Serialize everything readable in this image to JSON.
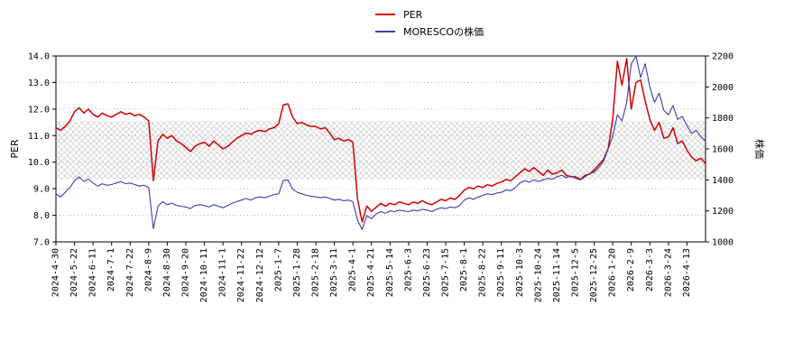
{
  "chart_data": {
    "type": "line",
    "title": "",
    "legend": [
      {
        "label": "PER",
        "color": "#d30000"
      },
      {
        "label": "MORESCOの株価",
        "color": "#3c3cb4"
      }
    ],
    "left_axis": {
      "label": "PER",
      "min": 7.0,
      "max": 14.0,
      "ticks": [
        7.0,
        8.0,
        9.0,
        10.0,
        11.0,
        12.0,
        13.0,
        14.0
      ]
    },
    "right_axis": {
      "label": "株価",
      "min": 1000,
      "max": 2200,
      "ticks": [
        1000,
        1200,
        1400,
        1600,
        1800,
        2000,
        2200
      ]
    },
    "x_ticks": [
      "2024-4-30",
      "2024-5-22",
      "2024-6-11",
      "2024-7-1",
      "2024-7-22",
      "2024-8-9",
      "2024-8-30",
      "2024-9-20",
      "2024-10-11",
      "2024-11-1",
      "2024-11-22",
      "2024-12-12",
      "2025-1-7",
      "2025-1-28",
      "2025-2-18",
      "2025-3-11",
      "2025-4-1",
      "2025-4-21",
      "2025-5-14",
      "2025-6-3",
      "2025-6-23",
      "2025-7-15",
      "2025-8-1",
      "2025-8-22",
      "2025-9-11",
      "2025-10-3",
      "2025-10-24",
      "2025-11-14",
      "2025-12-5",
      "2025-12-25",
      "2026-1-20",
      "2026-2-9",
      "2026-3-3",
      "2026-3-24",
      "2026-4-13"
    ],
    "points_per_tick": 4,
    "band": {
      "axis": "left",
      "from": 9.35,
      "to": 11.55,
      "style": "crosshatch"
    },
    "colors": {
      "grid": "#9a9a9a",
      "hatch": "#c9c9c9",
      "axis": "#000000",
      "background": "#ffffff"
    },
    "series": [
      {
        "name": "PER",
        "axis": "left",
        "color": "#d30000",
        "width": 1.5,
        "values": [
          11.3,
          11.2,
          11.35,
          11.55,
          11.9,
          12.05,
          11.85,
          12.0,
          11.8,
          11.7,
          11.85,
          11.75,
          11.7,
          11.8,
          11.9,
          11.8,
          11.85,
          11.75,
          11.8,
          11.7,
          11.55,
          9.3,
          10.8,
          11.05,
          10.9,
          11.0,
          10.8,
          10.7,
          10.55,
          10.4,
          10.6,
          10.7,
          10.75,
          10.6,
          10.8,
          10.65,
          10.5,
          10.6,
          10.75,
          10.9,
          11.0,
          11.1,
          11.05,
          11.15,
          11.2,
          11.15,
          11.25,
          11.3,
          11.45,
          12.15,
          12.2,
          11.7,
          11.45,
          11.5,
          11.4,
          11.35,
          11.35,
          11.25,
          11.3,
          11.1,
          10.85,
          10.9,
          10.8,
          10.85,
          10.75,
          8.6,
          7.75,
          8.35,
          8.15,
          8.3,
          8.45,
          8.35,
          8.45,
          8.4,
          8.5,
          8.45,
          8.4,
          8.5,
          8.45,
          8.55,
          8.45,
          8.4,
          8.5,
          8.6,
          8.55,
          8.65,
          8.6,
          8.75,
          8.95,
          9.05,
          9.0,
          9.1,
          9.05,
          9.15,
          9.1,
          9.2,
          9.25,
          9.35,
          9.3,
          9.45,
          9.6,
          9.75,
          9.65,
          9.8,
          9.65,
          9.5,
          9.7,
          9.55,
          9.6,
          9.7,
          9.5,
          9.45,
          9.45,
          9.35,
          9.5,
          9.55,
          9.7,
          9.9,
          10.1,
          10.5,
          11.6,
          13.8,
          12.9,
          13.9,
          12.0,
          13.0,
          13.1,
          12.3,
          11.6,
          11.2,
          11.5,
          10.9,
          10.95,
          11.3,
          10.7,
          10.8,
          10.45,
          10.2,
          10.05,
          10.15,
          9.95
        ]
      },
      {
        "name": "MORESCOの株価",
        "axis": "right",
        "color": "#3c3cb4",
        "width": 1.1,
        "values": [
          1310,
          1290,
          1320,
          1350,
          1395,
          1420,
          1390,
          1405,
          1380,
          1360,
          1375,
          1365,
          1370,
          1380,
          1390,
          1375,
          1380,
          1370,
          1360,
          1365,
          1350,
          1085,
          1230,
          1260,
          1240,
          1250,
          1235,
          1230,
          1225,
          1215,
          1235,
          1240,
          1235,
          1225,
          1240,
          1230,
          1220,
          1235,
          1250,
          1260,
          1270,
          1280,
          1270,
          1285,
          1290,
          1285,
          1295,
          1305,
          1310,
          1395,
          1400,
          1340,
          1320,
          1310,
          1300,
          1295,
          1290,
          1285,
          1290,
          1280,
          1270,
          1275,
          1265,
          1270,
          1260,
          1140,
          1080,
          1170,
          1150,
          1180,
          1195,
          1185,
          1200,
          1195,
          1205,
          1200,
          1195,
          1205,
          1200,
          1210,
          1205,
          1195,
          1210,
          1220,
          1215,
          1225,
          1220,
          1235,
          1270,
          1285,
          1275,
          1290,
          1300,
          1310,
          1305,
          1315,
          1320,
          1335,
          1330,
          1350,
          1380,
          1395,
          1385,
          1400,
          1390,
          1400,
          1410,
          1405,
          1420,
          1430,
          1415,
          1425,
          1410,
          1400,
          1420,
          1440,
          1450,
          1480,
          1520,
          1600,
          1680,
          1820,
          1780,
          1900,
          2150,
          2200,
          2060,
          2150,
          2000,
          1900,
          1960,
          1850,
          1820,
          1880,
          1790,
          1810,
          1750,
          1700,
          1720,
          1680,
          1650
        ]
      }
    ]
  }
}
